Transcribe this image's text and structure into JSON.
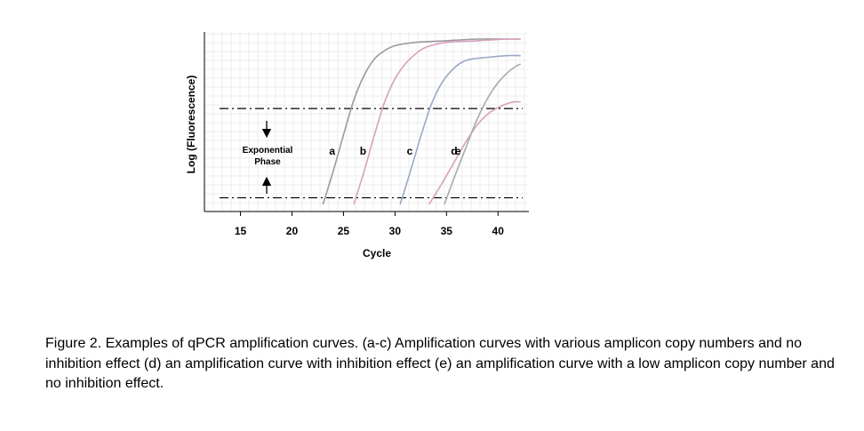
{
  "chart_data": {
    "type": "line",
    "xlabel": "Cycle",
    "ylabel": "Log (Fluorescence)",
    "xlim": [
      11.5,
      43
    ],
    "ylim": [
      0,
      1
    ],
    "xticks": [
      15,
      20,
      25,
      30,
      35,
      40
    ],
    "grid": true,
    "y_tick_labels": false,
    "series": [
      {
        "name": "a",
        "color": "#9a9a9a",
        "x": [
          23.0,
          24.0,
          25.0,
          26.0,
          27.0,
          28.0,
          29.0,
          30.0,
          32.0,
          35.0,
          38.0,
          41.0,
          42.2
        ],
        "y": [
          0.0,
          0.2,
          0.42,
          0.63,
          0.78,
          0.88,
          0.93,
          0.96,
          0.98,
          0.99,
          1.0,
          1.0,
          1.0
        ]
      },
      {
        "name": "b",
        "color": "#d9a0bf",
        "x": [
          26.0,
          27.0,
          28.0,
          29.0,
          30.0,
          31.0,
          32.0,
          33.0,
          35.0,
          38.0,
          41.0,
          42.2
        ],
        "y": [
          0.0,
          0.2,
          0.42,
          0.62,
          0.76,
          0.85,
          0.91,
          0.95,
          0.98,
          0.99,
          1.0,
          1.0
        ]
      },
      {
        "name": "c",
        "color": "#9aaac4",
        "x": [
          30.5,
          31.5,
          32.5,
          33.5,
          34.5,
          35.5,
          36.5,
          37.5,
          39.0,
          41.0,
          42.2
        ],
        "y": [
          0.0,
          0.2,
          0.41,
          0.6,
          0.73,
          0.81,
          0.86,
          0.88,
          0.89,
          0.9,
          0.9
        ]
      },
      {
        "name": "d",
        "color": "#d9a0bf",
        "x": [
          33.3,
          34.5,
          35.7,
          36.9,
          38.1,
          39.3,
          40.5,
          41.5,
          42.2
        ],
        "y": [
          0.0,
          0.12,
          0.25,
          0.38,
          0.49,
          0.56,
          0.6,
          0.62,
          0.62
        ]
      },
      {
        "name": "e",
        "color": "#aaaaaa",
        "x": [
          34.8,
          35.8,
          36.8,
          37.8,
          38.8,
          39.8,
          40.8,
          41.6,
          42.2
        ],
        "y": [
          0.0,
          0.17,
          0.33,
          0.49,
          0.62,
          0.72,
          0.79,
          0.83,
          0.85
        ]
      }
    ],
    "threshold_lines": [
      0.58,
      0.04
    ],
    "annotations": {
      "phase_label": [
        "Exponential",
        "Phase"
      ]
    }
  },
  "caption": "Figure 2.  Examples of qPCR amplification curves. (a-c) Amplification curves with various amplicon copy numbers and no inhibition effect (d) an amplification curve with inhibition effect (e) an amplification curve with a low amplicon copy number and no inhibition effect."
}
